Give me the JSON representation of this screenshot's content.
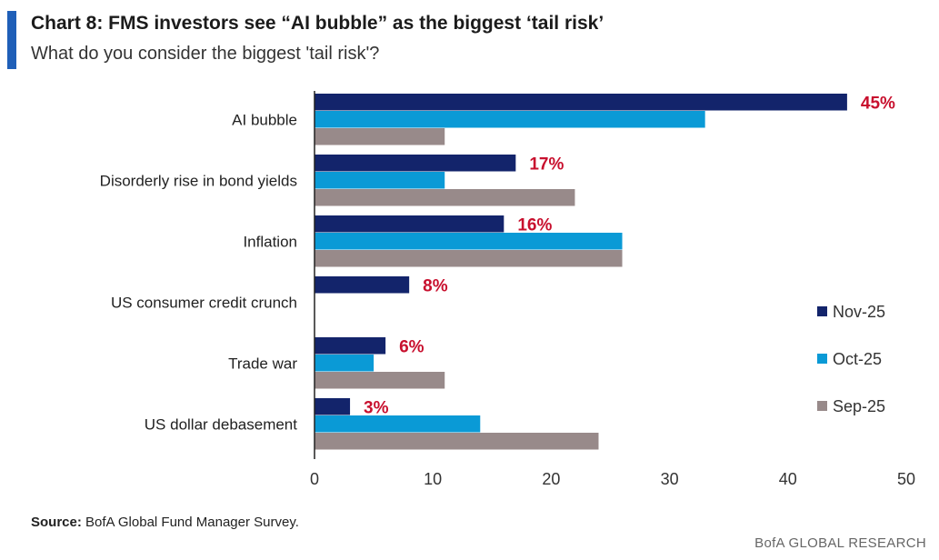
{
  "header": {
    "title": "Chart 8: FMS investors see “AI bubble” as the biggest ‘tail risk’",
    "subtitle": "What do you consider the biggest 'tail risk'?"
  },
  "footer": {
    "source_label": "Source:",
    "source_text": " BofA Global Fund Manager Survey.",
    "brand": "BofA GLOBAL RESEARCH"
  },
  "colors": {
    "nov": "#13246b",
    "oct": "#0a9ad6",
    "sep": "#988a8a",
    "annotation": "#c8102e",
    "accent": "#1f5fb8"
  },
  "chart_data": {
    "type": "bar",
    "orientation": "horizontal",
    "categories": [
      "AI bubble",
      "Disorderly rise in bond yields",
      "Inflation",
      "US consumer credit crunch",
      "Trade war",
      "US dollar debasement"
    ],
    "series": [
      {
        "name": "Nov-25",
        "values": [
          45,
          17,
          16,
          8,
          6,
          3
        ]
      },
      {
        "name": "Oct-25",
        "values": [
          33,
          11,
          26,
          null,
          5,
          14
        ]
      },
      {
        "name": "Sep-25",
        "values": [
          11,
          22,
          26,
          null,
          11,
          24
        ]
      }
    ],
    "data_labels": [
      "45%",
      "17%",
      "16%",
      "8%",
      "6%",
      "3%"
    ],
    "xlim": [
      0,
      50
    ],
    "xticks": [
      "0",
      "10",
      "20",
      "30",
      "40",
      "50"
    ],
    "grid": false,
    "legend_position": "right"
  }
}
